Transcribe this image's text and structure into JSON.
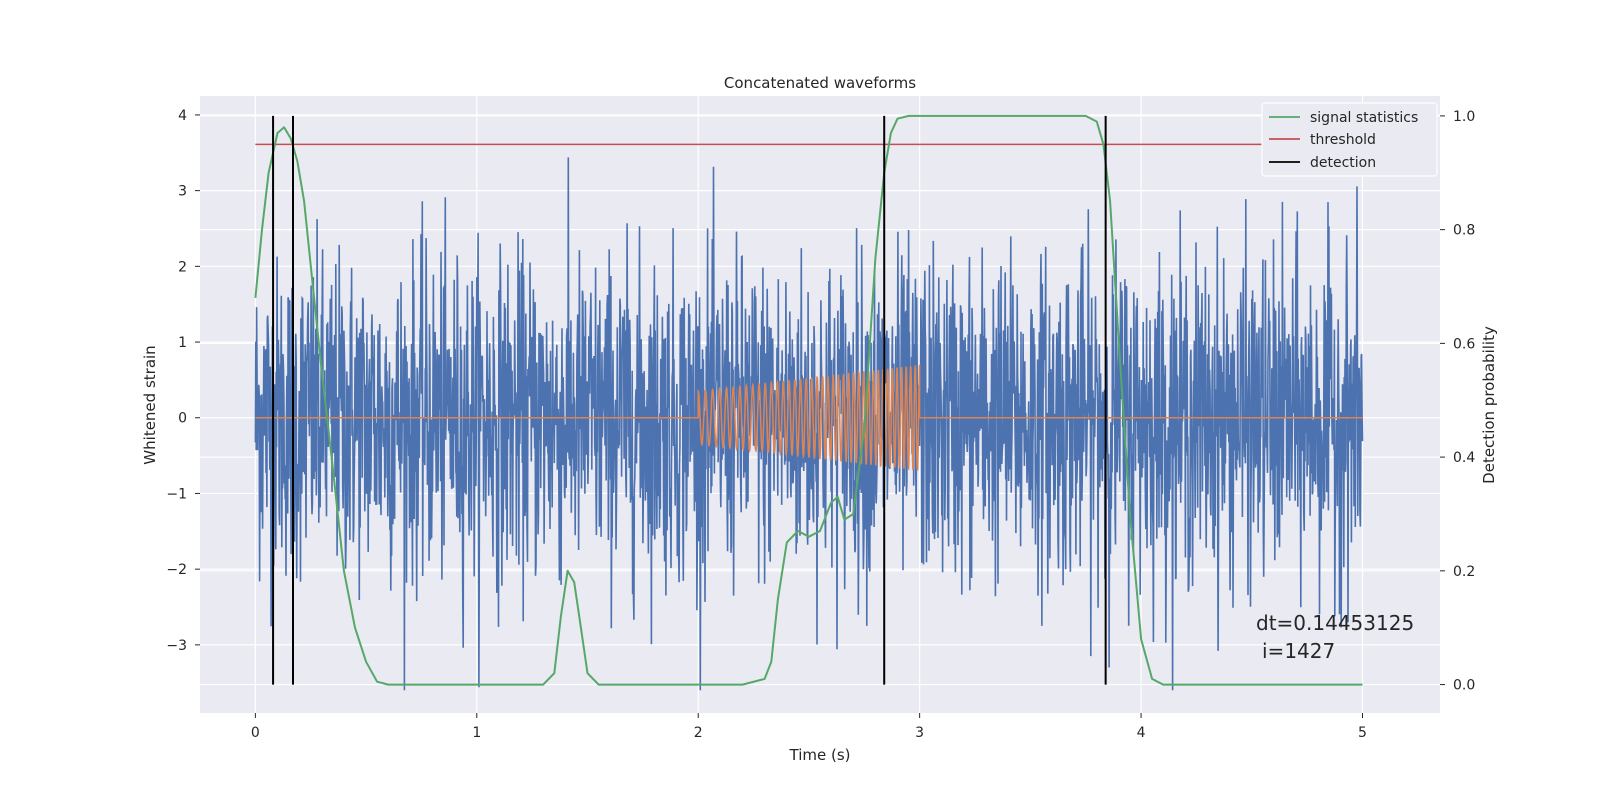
{
  "chart_data": {
    "type": "line",
    "title": "Concatenated waveforms",
    "xlabel": "Time (s)",
    "ylabel_left": "Whitened strain",
    "ylabel_right": "Detection probability",
    "xlim": [
      -0.25,
      5.35
    ],
    "ylim_left": [
      -3.9,
      4.25
    ],
    "ylim_right": [
      -0.05,
      1.035
    ],
    "xticks": [
      "0",
      "1",
      "2",
      "3",
      "4",
      "5"
    ],
    "yticks_left": [
      "4",
      "3",
      "2",
      "1",
      "0",
      "−1",
      "−2",
      "−3"
    ],
    "yticks_right": [
      "1.0",
      "0.8",
      "0.6",
      "0.4",
      "0.2",
      "0.0"
    ],
    "grid": true,
    "legend_position": "top-right",
    "legend": [
      "signal statistics",
      "threshold",
      "detection"
    ],
    "colors": {
      "strain": "#4c72b0",
      "template": "#dd8452",
      "signal_statistics": "#55a868",
      "threshold": "#c44e52",
      "detection": "#000000",
      "background": "#eaeaf2",
      "grid": "#ffffff"
    },
    "series": [
      {
        "name": "signal statistics",
        "axis": "right",
        "x": [
          0.0,
          0.03,
          0.06,
          0.1,
          0.13,
          0.16,
          0.19,
          0.22,
          0.26,
          0.3,
          0.35,
          0.4,
          0.45,
          0.5,
          0.55,
          0.6,
          0.8,
          1.0,
          1.2,
          1.3,
          1.35,
          1.38,
          1.41,
          1.44,
          1.47,
          1.5,
          1.55,
          1.7,
          2.0,
          2.2,
          2.3,
          2.33,
          2.36,
          2.4,
          2.45,
          2.5,
          2.55,
          2.6,
          2.63,
          2.66,
          2.7,
          2.75,
          2.8,
          2.84,
          2.87,
          2.9,
          2.95,
          3.2,
          3.5,
          3.75,
          3.8,
          3.83,
          3.86,
          3.9,
          3.95,
          4.0,
          4.05,
          4.1,
          4.3,
          4.6,
          5.0
        ],
        "y": [
          0.68,
          0.8,
          0.9,
          0.97,
          0.98,
          0.96,
          0.92,
          0.85,
          0.7,
          0.55,
          0.38,
          0.2,
          0.1,
          0.04,
          0.005,
          0.0,
          0.0,
          0.0,
          0.0,
          0.0,
          0.02,
          0.12,
          0.2,
          0.18,
          0.1,
          0.02,
          0.0,
          0.0,
          0.0,
          0.0,
          0.01,
          0.04,
          0.15,
          0.25,
          0.27,
          0.26,
          0.27,
          0.32,
          0.33,
          0.29,
          0.3,
          0.45,
          0.75,
          0.9,
          0.97,
          0.995,
          1.0,
          1.0,
          1.0,
          1.0,
          0.99,
          0.95,
          0.85,
          0.6,
          0.3,
          0.08,
          0.01,
          0.0,
          0.0,
          0.0,
          0.0
        ]
      },
      {
        "name": "threshold",
        "axis": "right",
        "x": [
          0,
          5
        ],
        "y": [
          0.95,
          0.95
        ]
      },
      {
        "name": "detection",
        "axis": "right",
        "x": [
          0.08,
          0.17,
          2.84,
          3.84
        ]
      }
    ],
    "strain_noise": {
      "axis": "left",
      "x_range": [
        0,
        5
      ],
      "approx_range": [
        -3.6,
        3.8
      ]
    },
    "template_waveform": {
      "axis": "left",
      "x_range": [
        2,
        3
      ],
      "amplitude_start": 0.35,
      "amplitude_end": 0.7
    },
    "annotation": [
      "dt=0.14453125",
      "i=1427"
    ]
  }
}
